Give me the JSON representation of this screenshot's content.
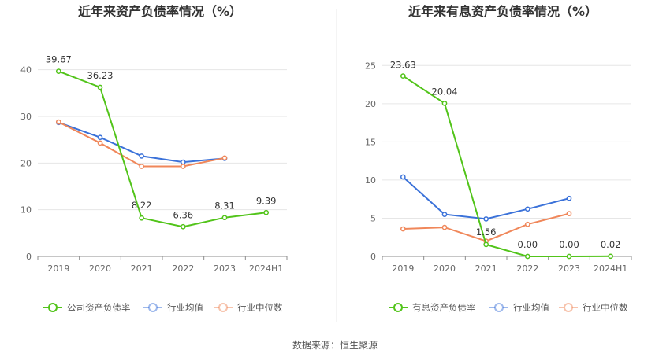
{
  "source": "数据来源：恒生聚源",
  "chart_data": [
    {
      "type": "line",
      "title": "近年来资产负债率情况（%）",
      "categories": [
        "2019",
        "2020",
        "2021",
        "2022",
        "2023",
        "2024H1"
      ],
      "ylim": [
        0,
        45
      ],
      "yticks": [
        0,
        10,
        20,
        30,
        40
      ],
      "grid": true,
      "legend_position": "bottom",
      "series": [
        {
          "name": "公司资产负债率",
          "color": "#52c41a",
          "values": [
            39.67,
            36.23,
            8.22,
            6.36,
            8.31,
            9.39
          ],
          "labels": [
            "39.67",
            "36.23",
            "8.22",
            "6.36",
            "8.31",
            "9.39"
          ]
        },
        {
          "name": "行业均值",
          "color": "#3b72d9",
          "values": [
            28.7,
            25.5,
            21.5,
            20.2,
            21.0,
            null
          ],
          "labels": []
        },
        {
          "name": "行业中位数",
          "color": "#f0875a",
          "values": [
            28.8,
            24.3,
            19.3,
            19.3,
            21.1,
            null
          ],
          "labels": []
        }
      ]
    },
    {
      "type": "line",
      "title": "近年来有息资产负债率情况（%）",
      "categories": [
        "2019",
        "2020",
        "2021",
        "2022",
        "2023",
        "2024H1"
      ],
      "ylim": [
        0,
        27.5
      ],
      "yticks": [
        0,
        5,
        10,
        15,
        20,
        25
      ],
      "grid": true,
      "legend_position": "bottom",
      "series": [
        {
          "name": "有息资产负债率",
          "color": "#52c41a",
          "values": [
            23.63,
            20.04,
            1.56,
            0.0,
            0.0,
            0.02
          ],
          "labels": [
            "23.63",
            "20.04",
            "1.56",
            "0.00",
            "0.00",
            "0.02"
          ]
        },
        {
          "name": "行业均值",
          "color": "#3b72d9",
          "values": [
            10.4,
            5.5,
            4.9,
            6.2,
            7.6,
            null
          ],
          "labels": []
        },
        {
          "name": "行业中位数",
          "color": "#f0875a",
          "values": [
            3.6,
            3.8,
            2.0,
            4.2,
            5.6,
            null
          ],
          "labels": []
        }
      ]
    }
  ]
}
